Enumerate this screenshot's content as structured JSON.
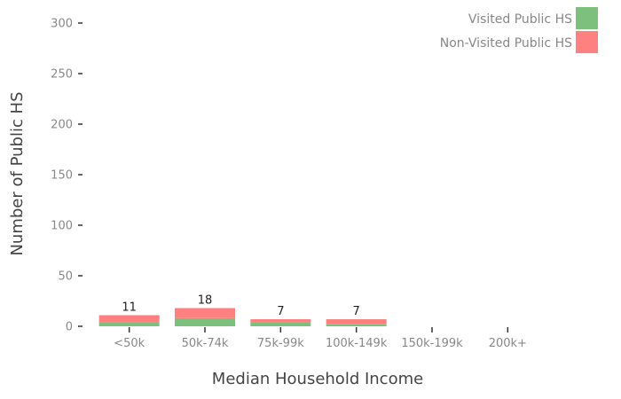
{
  "chart_data": {
    "type": "bar",
    "stacked": true,
    "title": "",
    "xlabel": "Median Household Income",
    "ylabel": "Number of Public HS",
    "categories": [
      "<50k",
      "50k-74k",
      "75k-99k",
      "100k-149k",
      "150k-199k",
      "200k+"
    ],
    "series": [
      {
        "name": "Visited Public HS",
        "color": "#7dc07d",
        "values": [
          4,
          8,
          4,
          2,
          0,
          0
        ]
      },
      {
        "name": "Non-Visited Public HS",
        "color": "#ff8080",
        "values": [
          7,
          10,
          3,
          5,
          0,
          0
        ]
      }
    ],
    "totals": [
      "11",
      "18",
      "7",
      "7",
      "",
      ""
    ],
    "ylim": [
      0,
      300
    ],
    "yticks": [
      "0",
      "50",
      "100",
      "150",
      "200",
      "250",
      "300"
    ],
    "grid": false,
    "legend_position": "top-right"
  }
}
